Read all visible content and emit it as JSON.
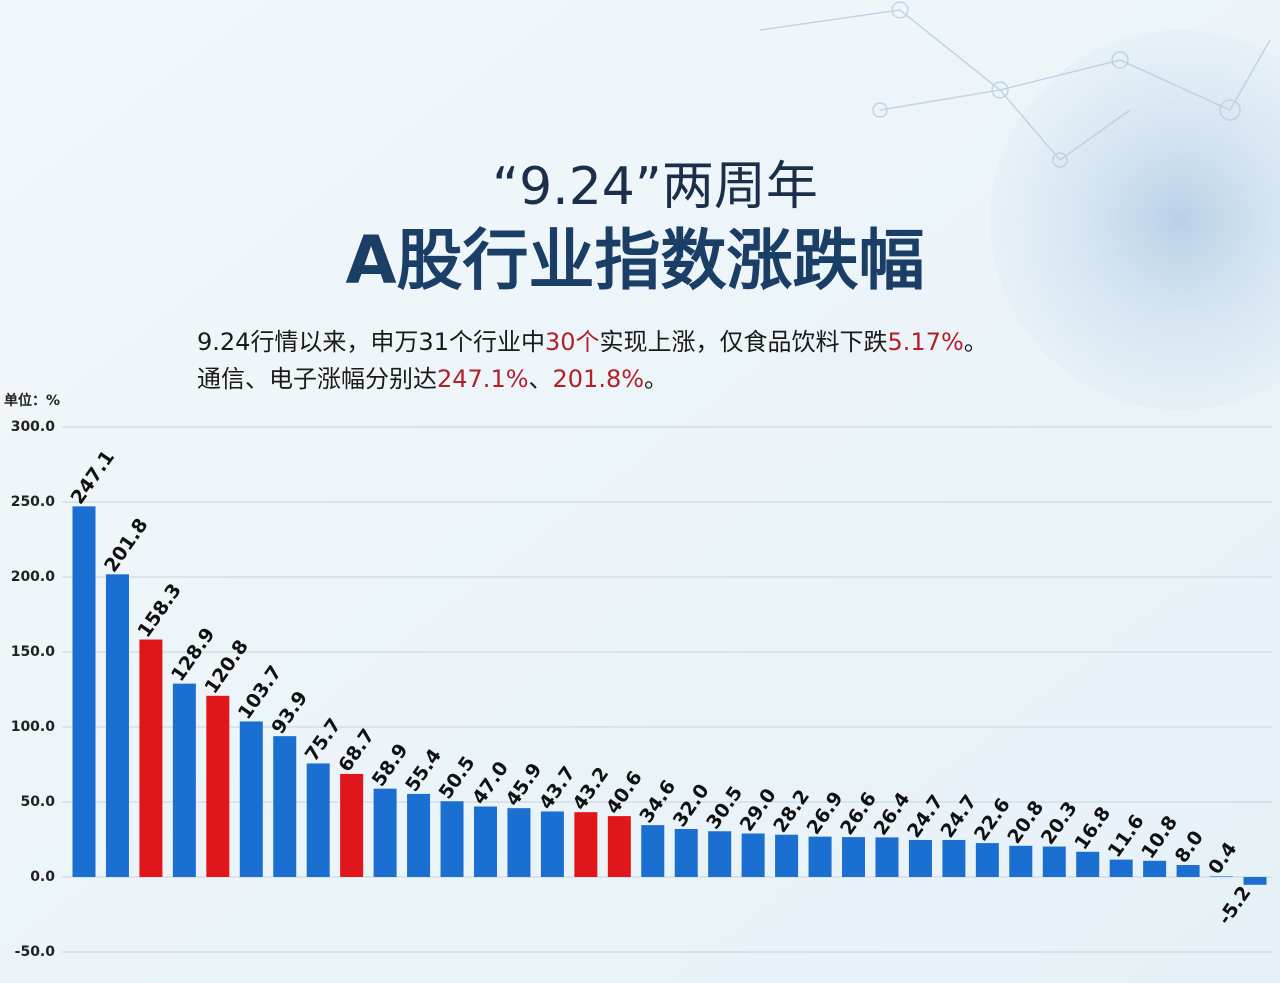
{
  "chart_data": {
    "type": "bar",
    "title": "“9.24”两周年",
    "subtitle_main": "A股行业指数涨跌幅",
    "subtitle": [
      [
        "9.24行情以来，申万31个行业中",
        "30个",
        "实现上涨，仅食品饮料下跌",
        "5.17%",
        "。"
      ],
      [
        "通信、电子涨幅分别达",
        "247.1%",
        "、",
        "201.8%",
        "。"
      ]
    ],
    "highlight_color": "#b3202a",
    "y_label": "单位：%",
    "categories": [
      null,
      null,
      null,
      null,
      null,
      null,
      null,
      null,
      null,
      null,
      null,
      null,
      null,
      null,
      null,
      null,
      null,
      null,
      null,
      null,
      null,
      null,
      null,
      null,
      null,
      null,
      null,
      null,
      null,
      null,
      null,
      null,
      null,
      null,
      null,
      null
    ],
    "values": [
      247.1,
      201.8,
      158.3,
      128.9,
      120.8,
      103.7,
      93.9,
      75.7,
      68.7,
      58.9,
      55.4,
      50.5,
      47.0,
      45.9,
      43.7,
      43.2,
      40.6,
      34.6,
      32.0,
      30.5,
      29.0,
      28.2,
      26.9,
      26.6,
      26.4,
      24.7,
      24.7,
      22.6,
      20.8,
      20.3,
      16.8,
      11.6,
      10.8,
      8.0,
      0.4,
      -5.2
    ],
    "value_labels": [
      "247.1",
      "201.8",
      "158.3",
      "128.9",
      "120.8",
      "103.7",
      "93.9",
      "75.7",
      "68.7",
      "58.9",
      "55.4",
      "50.5",
      "47.0",
      "45.9",
      "43.7",
      "43.2",
      "40.6",
      "34.6",
      "32.0",
      "30.5",
      "29.0",
      "28.2",
      "26.9",
      "26.6",
      "26.4",
      "24.7",
      "24.7",
      "22.6",
      "20.8",
      "20.3",
      "16.8",
      "11.6",
      "10.8",
      "8.0",
      "0.4",
      "-5.2"
    ],
    "colors": [
      "#1a6fd0",
      "#1a6fd0",
      "#e0161b",
      "#1a6fd0",
      "#e0161b",
      "#1a6fd0",
      "#1a6fd0",
      "#1a6fd0",
      "#e0161b",
      "#1a6fd0",
      "#1a6fd0",
      "#1a6fd0",
      "#1a6fd0",
      "#1a6fd0",
      "#1a6fd0",
      "#e0161b",
      "#e0161b",
      "#1a6fd0",
      "#1a6fd0",
      "#1a6fd0",
      "#1a6fd0",
      "#1a6fd0",
      "#1a6fd0",
      "#1a6fd0",
      "#1a6fd0",
      "#1a6fd0",
      "#1a6fd0",
      "#1a6fd0",
      "#1a6fd0",
      "#1a6fd0",
      "#1a6fd0",
      "#1a6fd0",
      "#1a6fd0",
      "#1a6fd0",
      "#1a6fd0",
      "#1a6fd0"
    ],
    "ylim": [
      -50,
      300
    ],
    "yticks": [
      {
        "value": -50,
        "label": "-50.0"
      },
      {
        "value": 0,
        "label": "0.0"
      },
      {
        "value": 50,
        "label": "50.0"
      },
      {
        "value": 100,
        "label": "100.0"
      },
      {
        "value": 150,
        "label": "150.0"
      },
      {
        "value": 200,
        "label": "200.0"
      },
      {
        "value": 250,
        "label": "250.0"
      },
      {
        "value": 300,
        "label": "300.0"
      }
    ],
    "grid": true
  }
}
